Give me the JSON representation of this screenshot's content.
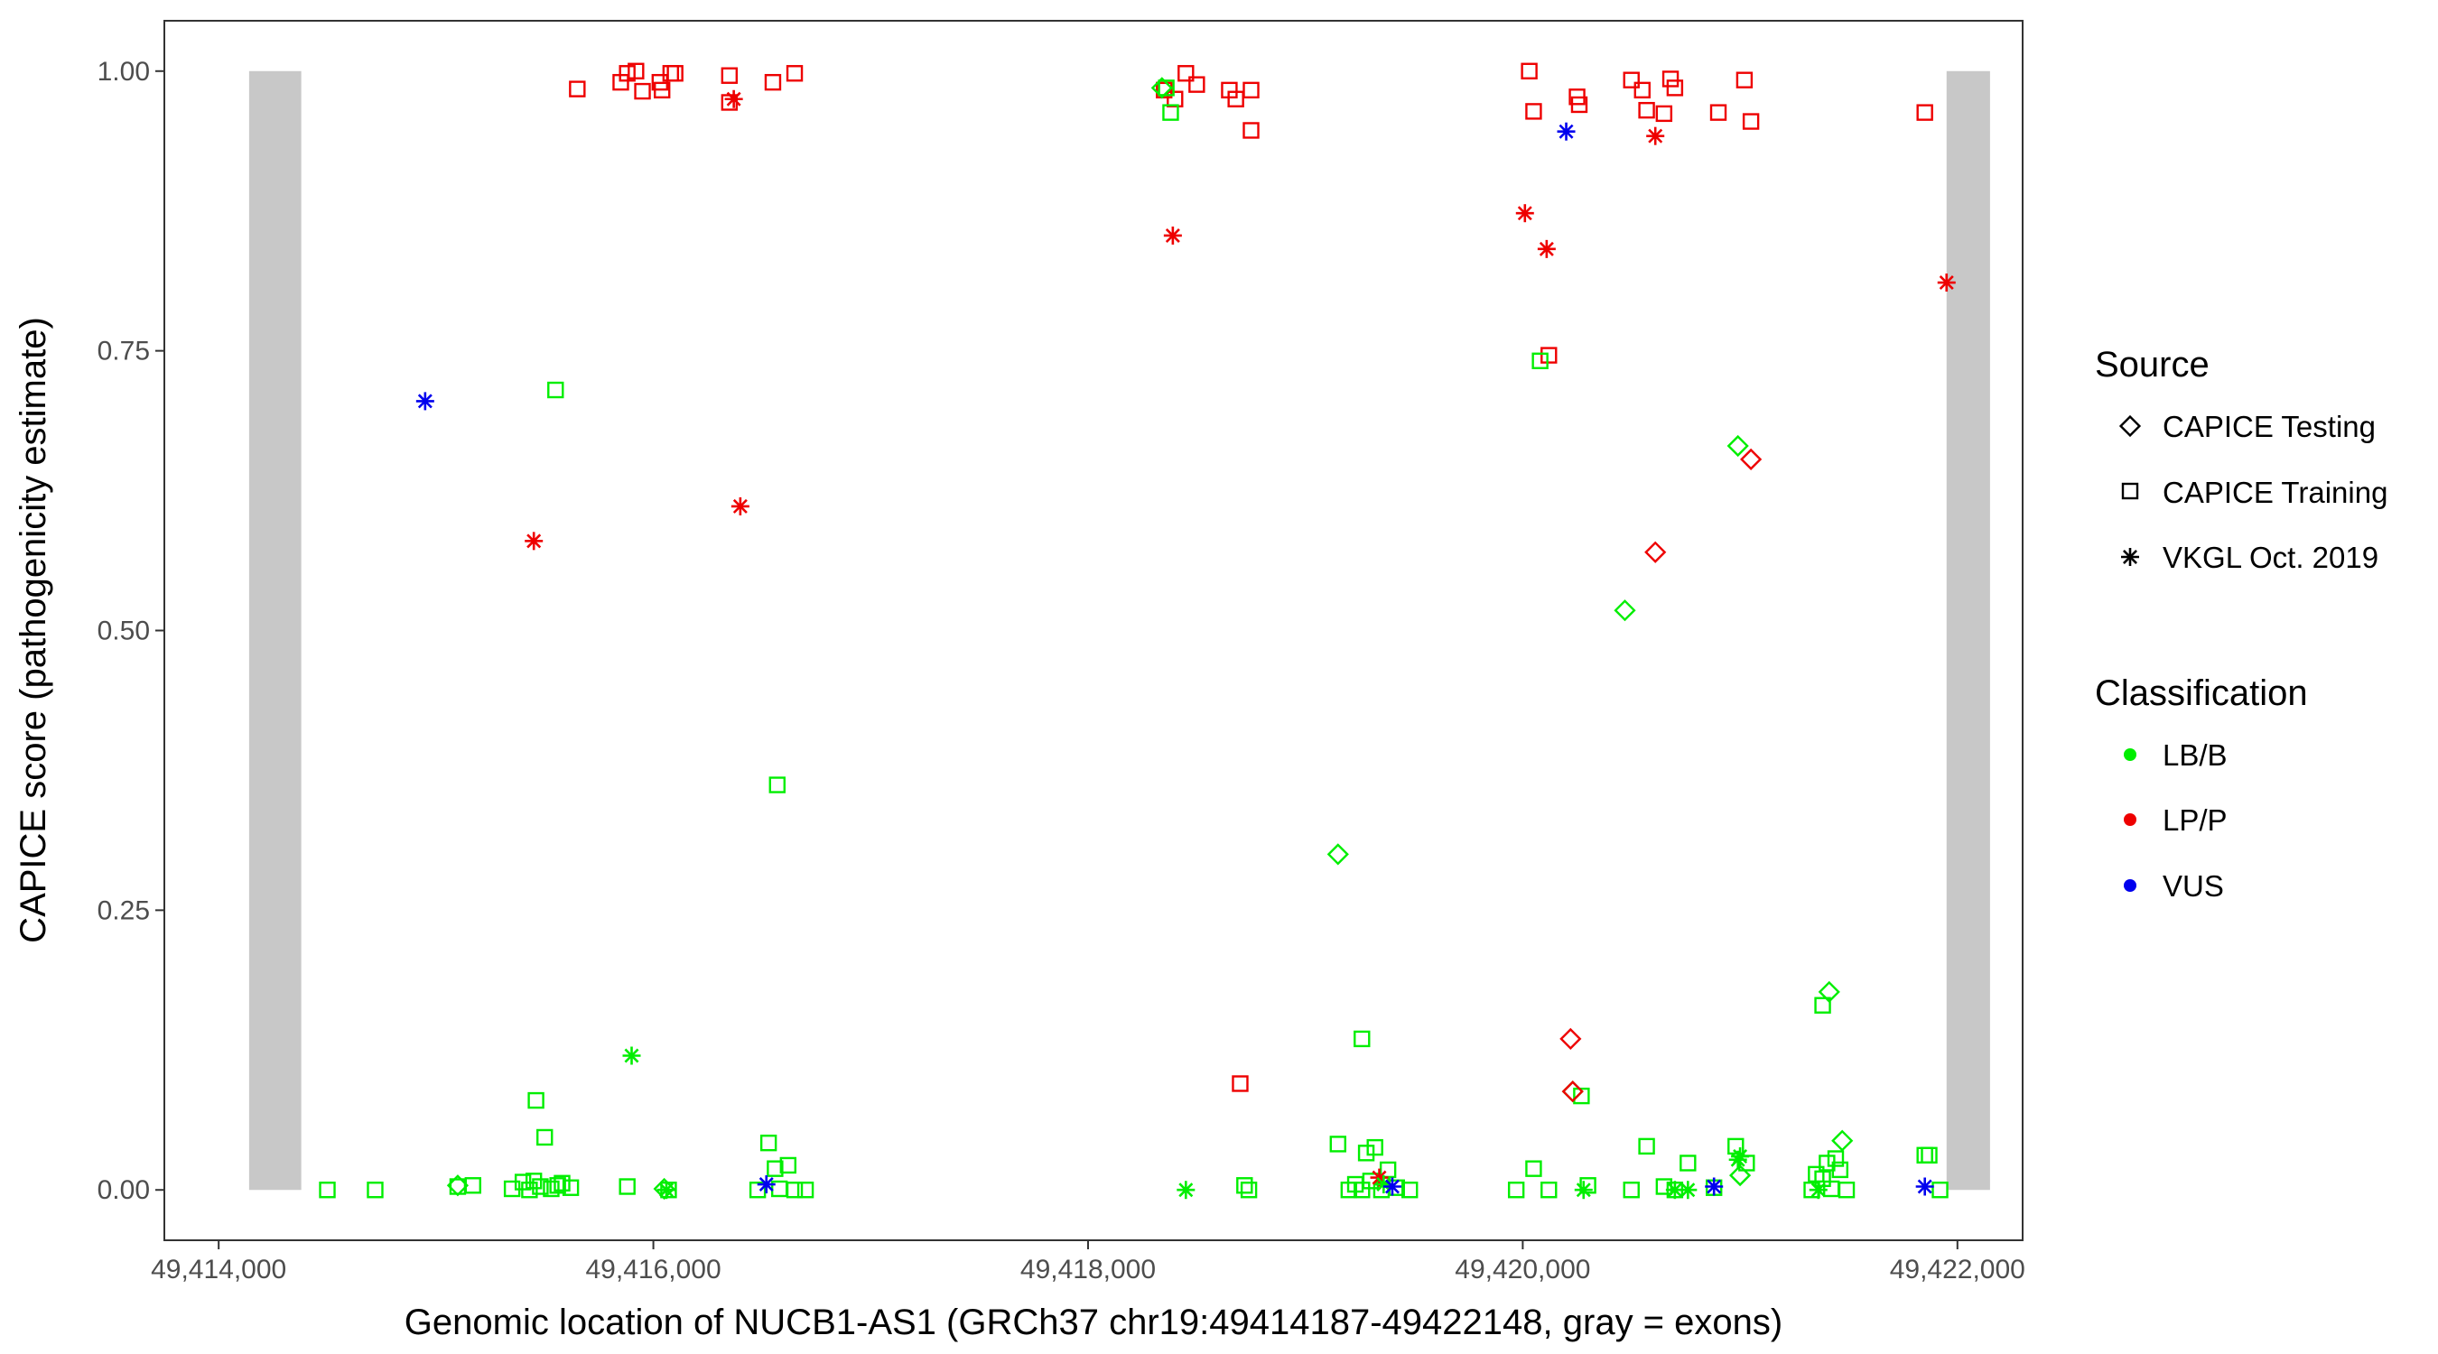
{
  "chart_data": {
    "type": "scatter",
    "xlabel": "Genomic location of NUCB1-AS1 (GRCh37 chr19:49414187-49422148, gray = exons)",
    "ylabel": "CAPICE score (pathogenicity estimate)",
    "xlim": [
      49413750,
      49422300
    ],
    "ylim": [
      -0.045,
      1.045
    ],
    "x_ticks": [
      {
        "value": 49414000,
        "label": "49,414,000"
      },
      {
        "value": 49416000,
        "label": "49,416,000"
      },
      {
        "value": 49418000,
        "label": "49,418,000"
      },
      {
        "value": 49420000,
        "label": "49,420,000"
      },
      {
        "value": 49422000,
        "label": "49,422,000"
      }
    ],
    "y_ticks": [
      {
        "value": 0.0,
        "label": "0.00"
      },
      {
        "value": 0.25,
        "label": "0.25"
      },
      {
        "value": 0.5,
        "label": "0.50"
      },
      {
        "value": 0.75,
        "label": "0.75"
      },
      {
        "value": 1.0,
        "label": "1.00"
      }
    ],
    "grid": false,
    "exons": [
      {
        "start": 49414140,
        "end": 49414380,
        "color": "#c8c8c8"
      },
      {
        "start": 49421950,
        "end": 49422150,
        "color": "#c8c8c8"
      }
    ],
    "legend": {
      "placement": "right",
      "source": {
        "title": "Source",
        "items": [
          {
            "label": "CAPICE Testing",
            "shape": "diamond"
          },
          {
            "label": "CAPICE Training",
            "shape": "square"
          },
          {
            "label": "VKGL Oct. 2019",
            "shape": "asterisk"
          }
        ]
      },
      "classification": {
        "title": "Classification",
        "items": [
          {
            "label": "LB/B",
            "color": "#00ee00"
          },
          {
            "label": "LP/P",
            "color": "#ee0000"
          },
          {
            "label": "VUS",
            "color": "#0000ee"
          }
        ]
      }
    },
    "series": [
      {
        "source": "CAPICE Training",
        "classification": "LP/P",
        "points": [
          [
            49415650,
            0.984
          ],
          [
            49415850,
            0.99
          ],
          [
            49415880,
            0.998
          ],
          [
            49415920,
            1.0
          ],
          [
            49415950,
            0.982
          ],
          [
            49416030,
            0.99
          ],
          [
            49416040,
            0.983
          ],
          [
            49416080,
            0.998
          ],
          [
            49416100,
            0.998
          ],
          [
            49416350,
            0.996
          ],
          [
            49416350,
            0.972
          ],
          [
            49416550,
            0.99
          ],
          [
            49416650,
            0.998
          ],
          [
            49418350,
            0.983
          ],
          [
            49418400,
            0.975
          ],
          [
            49418450,
            0.998
          ],
          [
            49418500,
            0.988
          ],
          [
            49418650,
            0.983
          ],
          [
            49418680,
            0.975
          ],
          [
            49418750,
            0.983
          ],
          [
            49418750,
            0.947
          ],
          [
            49420030,
            1.0
          ],
          [
            49420050,
            0.964
          ],
          [
            49420250,
            0.977
          ],
          [
            49420260,
            0.97
          ],
          [
            49420500,
            0.992
          ],
          [
            49420550,
            0.983
          ],
          [
            49420570,
            0.965
          ],
          [
            49420650,
            0.962
          ],
          [
            49420680,
            0.993
          ],
          [
            49420700,
            0.985
          ],
          [
            49420900,
            0.963
          ],
          [
            49421020,
            0.992
          ],
          [
            49421050,
            0.955
          ],
          [
            49421850,
            0.963
          ],
          [
            49420120,
            0.746
          ],
          [
            49418700,
            0.095
          ]
        ]
      },
      {
        "source": "CAPICE Training",
        "classification": "LB/B",
        "points": [
          [
            49414500,
            0.0
          ],
          [
            49414720,
            0.0
          ],
          [
            49415100,
            0.003
          ],
          [
            49415170,
            0.004
          ],
          [
            49415350,
            0.001
          ],
          [
            49415400,
            0.007
          ],
          [
            49415430,
            0.0
          ],
          [
            49415450,
            0.008
          ],
          [
            49415480,
            0.003
          ],
          [
            49415530,
            0.001
          ],
          [
            49415560,
            0.004
          ],
          [
            49415580,
            0.006
          ],
          [
            49415620,
            0.002
          ],
          [
            49415460,
            0.08
          ],
          [
            49415500,
            0.047
          ],
          [
            49415550,
            0.715
          ],
          [
            49415880,
            0.003
          ],
          [
            49416070,
            0.0
          ],
          [
            49416480,
            0.0
          ],
          [
            49416530,
            0.042
          ],
          [
            49416560,
            0.019
          ],
          [
            49416580,
            0.001
          ],
          [
            49416620,
            0.022
          ],
          [
            49416650,
            0.0
          ],
          [
            49416700,
            0.0
          ],
          [
            49416570,
            0.362
          ],
          [
            49418360,
            0.985
          ],
          [
            49418380,
            0.963
          ],
          [
            49418720,
            0.004
          ],
          [
            49418740,
            0.0
          ],
          [
            49419150,
            0.041
          ],
          [
            49419200,
            0.0
          ],
          [
            49419230,
            0.005
          ],
          [
            49419260,
            0.0
          ],
          [
            49419280,
            0.033
          ],
          [
            49419300,
            0.008
          ],
          [
            49419320,
            0.038
          ],
          [
            49419350,
            0.0
          ],
          [
            49419380,
            0.018
          ],
          [
            49419420,
            0.002
          ],
          [
            49419480,
            0.0
          ],
          [
            49419260,
            0.135
          ],
          [
            49419970,
            0.0
          ],
          [
            49420050,
            0.019
          ],
          [
            49420120,
            0.0
          ],
          [
            49420300,
            0.004
          ],
          [
            49420500,
            0.0
          ],
          [
            49420570,
            0.039
          ],
          [
            49420650,
            0.003
          ],
          [
            49420700,
            0.0
          ],
          [
            49420760,
            0.024
          ],
          [
            49420880,
            0.002
          ],
          [
            49420980,
            0.039
          ],
          [
            49421030,
            0.024
          ],
          [
            49421330,
            0.0
          ],
          [
            49421350,
            0.014
          ],
          [
            49421380,
            0.01
          ],
          [
            49421400,
            0.024
          ],
          [
            49421420,
            0.001
          ],
          [
            49421440,
            0.028
          ],
          [
            49421460,
            0.018
          ],
          [
            49421490,
            0.0
          ],
          [
            49421380,
            0.165
          ],
          [
            49421850,
            0.031
          ],
          [
            49421870,
            0.031
          ],
          [
            49421920,
            0.0
          ],
          [
            49420080,
            0.741
          ],
          [
            49420270,
            0.084
          ]
        ]
      },
      {
        "source": "CAPICE Testing",
        "classification": "LB/B",
        "points": [
          [
            49415100,
            0.004
          ],
          [
            49416050,
            0.001
          ],
          [
            49418340,
            0.985
          ],
          [
            49419150,
            0.3
          ],
          [
            49420470,
            0.518
          ],
          [
            49420990,
            0.665
          ],
          [
            49421410,
            0.177
          ],
          [
            49421470,
            0.044
          ],
          [
            49421000,
            0.013
          ],
          [
            49420230,
            0.088
          ]
        ]
      },
      {
        "source": "CAPICE Testing",
        "classification": "LP/P",
        "points": [
          [
            49421050,
            0.653
          ],
          [
            49420610,
            0.57
          ],
          [
            49420220,
            0.135
          ],
          [
            49420230,
            0.088
          ]
        ]
      },
      {
        "source": "VKGL Oct. 2019",
        "classification": "LP/P",
        "points": [
          [
            49415450,
            0.58
          ],
          [
            49416370,
            0.975
          ],
          [
            49416400,
            0.611
          ],
          [
            49418390,
            0.853
          ],
          [
            49420010,
            0.873
          ],
          [
            49420110,
            0.841
          ],
          [
            49420610,
            0.942
          ],
          [
            49421950,
            0.811
          ],
          [
            49419340,
            0.011
          ]
        ]
      },
      {
        "source": "VKGL Oct. 2019",
        "classification": "LB/B",
        "points": [
          [
            49415900,
            0.12
          ],
          [
            49416060,
            0.0
          ],
          [
            49418450,
            0.0
          ],
          [
            49419360,
            0.005
          ],
          [
            49420280,
            0.0
          ],
          [
            49420700,
            0.0
          ],
          [
            49420760,
            0.0
          ],
          [
            49420990,
            0.027
          ],
          [
            49421000,
            0.03
          ],
          [
            49421360,
            0.0
          ]
        ]
      },
      {
        "source": "VKGL Oct. 2019",
        "classification": "VUS",
        "points": [
          [
            49414950,
            0.705
          ],
          [
            49420200,
            0.946
          ],
          [
            49416520,
            0.005
          ],
          [
            49419400,
            0.003
          ],
          [
            49420880,
            0.003
          ],
          [
            49421850,
            0.003
          ]
        ]
      }
    ]
  }
}
